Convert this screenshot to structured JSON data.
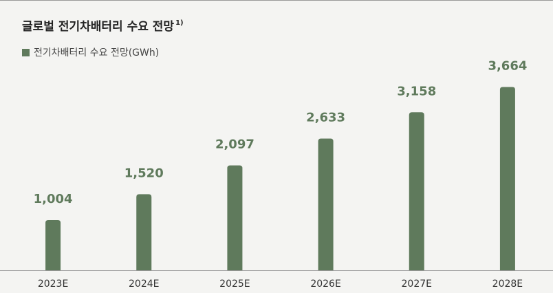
{
  "chart_data": {
    "type": "bar",
    "title": "글로벌 전기차배터리 수요 전망",
    "title_note": "1)",
    "categories": [
      "2023E",
      "2024E",
      "2025E",
      "2026E",
      "2027E",
      "2028E"
    ],
    "series": [
      {
        "name": "전기차배터리 수요 전망(GWh)",
        "color": "#5f7a5c",
        "values": [
          1004,
          1520,
          2097,
          2633,
          3158,
          3664
        ],
        "value_labels": [
          "1,004",
          "1,520",
          "2,097",
          "2,633",
          "3,158",
          "3,664"
        ]
      }
    ],
    "ylim": [
      0,
      4000
    ]
  }
}
